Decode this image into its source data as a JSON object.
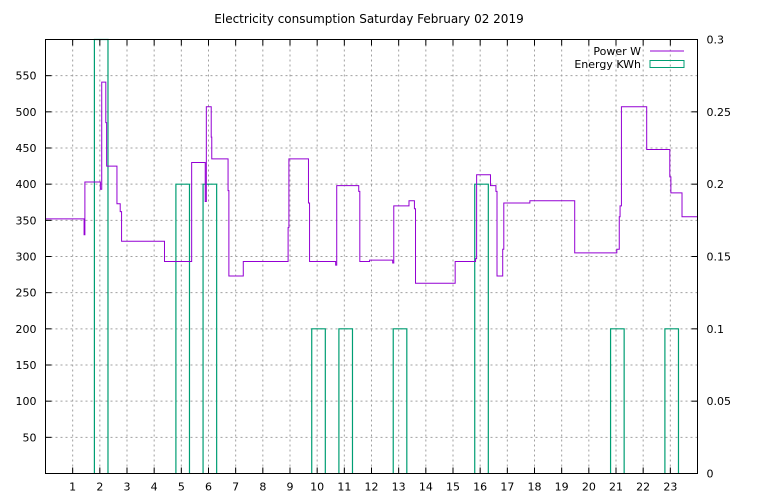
{
  "chart_data": {
    "type": "line",
    "title": "Electricity consumption Saturday February 02 2019",
    "xlabel": "",
    "ylabel": "",
    "xlim": [
      0,
      24
    ],
    "ylim": [
      0,
      600
    ],
    "y2lim": [
      0,
      0.3
    ],
    "x_ticks": [
      "1",
      "2",
      "3",
      "4",
      "5",
      "6",
      "7",
      "8",
      "9",
      "10",
      "11",
      "12",
      "13",
      "14",
      "15",
      "16",
      "17",
      "18",
      "19",
      "20",
      "21",
      "22",
      "23"
    ],
    "y_ticks": [
      "50",
      "100",
      "150",
      "200",
      "250",
      "300",
      "350",
      "400",
      "450",
      "500",
      "550"
    ],
    "y2_ticks": [
      "0",
      "0.05",
      "0.1",
      "0.15",
      "0.2",
      "0.25",
      "0.3"
    ],
    "grid": true,
    "legend_position": "top-right",
    "colors": {
      "power": "#9400d3",
      "energy": "#009e73"
    },
    "series": [
      {
        "name": "Power W",
        "axis": "left",
        "style": "steps",
        "points": [
          [
            0,
            352
          ],
          [
            1.4,
            352
          ],
          [
            1.42,
            330
          ],
          [
            1.45,
            403
          ],
          [
            2.0,
            403
          ],
          [
            2.02,
            393
          ],
          [
            2.07,
            541
          ],
          [
            2.2,
            541
          ],
          [
            2.22,
            485
          ],
          [
            2.25,
            425
          ],
          [
            2.6,
            425
          ],
          [
            2.63,
            373
          ],
          [
            2.75,
            362
          ],
          [
            2.8,
            321
          ],
          [
            4.35,
            321
          ],
          [
            4.38,
            293
          ],
          [
            5.35,
            293
          ],
          [
            5.38,
            430
          ],
          [
            5.85,
            430
          ],
          [
            5.88,
            376
          ],
          [
            5.92,
            507
          ],
          [
            6.08,
            507
          ],
          [
            6.1,
            465
          ],
          [
            6.12,
            435
          ],
          [
            6.7,
            435
          ],
          [
            6.72,
            391
          ],
          [
            6.75,
            273
          ],
          [
            7.25,
            273
          ],
          [
            7.28,
            293
          ],
          [
            8.9,
            293
          ],
          [
            8.93,
            340
          ],
          [
            8.96,
            435
          ],
          [
            9.65,
            435
          ],
          [
            9.68,
            374
          ],
          [
            9.72,
            293
          ],
          [
            10.65,
            293
          ],
          [
            10.68,
            288
          ],
          [
            10.72,
            398
          ],
          [
            11.5,
            398
          ],
          [
            11.53,
            390
          ],
          [
            11.57,
            293
          ],
          [
            11.9,
            293
          ],
          [
            11.93,
            295
          ],
          [
            12.75,
            295
          ],
          [
            12.78,
            291
          ],
          [
            12.82,
            370
          ],
          [
            13.35,
            370
          ],
          [
            13.38,
            377
          ],
          [
            13.55,
            377
          ],
          [
            13.58,
            366
          ],
          [
            13.62,
            263
          ],
          [
            15.05,
            263
          ],
          [
            15.08,
            293
          ],
          [
            15.8,
            293
          ],
          [
            15.83,
            297
          ],
          [
            15.87,
            413
          ],
          [
            16.35,
            413
          ],
          [
            16.38,
            398
          ],
          [
            16.55,
            398
          ],
          [
            16.58,
            390
          ],
          [
            16.62,
            273
          ],
          [
            16.8,
            273
          ],
          [
            16.83,
            310
          ],
          [
            16.87,
            374
          ],
          [
            17.8,
            374
          ],
          [
            17.83,
            377
          ],
          [
            19.45,
            377
          ],
          [
            19.48,
            305
          ],
          [
            21.0,
            305
          ],
          [
            21.03,
            310
          ],
          [
            21.12,
            355
          ],
          [
            21.15,
            370
          ],
          [
            21.2,
            507
          ],
          [
            22.1,
            507
          ],
          [
            22.13,
            448
          ],
          [
            22.95,
            448
          ],
          [
            22.98,
            410
          ],
          [
            23.02,
            388
          ],
          [
            23.4,
            388
          ],
          [
            23.43,
            355
          ],
          [
            24.0,
            355
          ]
        ]
      },
      {
        "name": "Energy KWh",
        "axis": "right",
        "style": "bars",
        "bars": [
          {
            "x1": 1.8,
            "x2": 2.3,
            "value": 0.3
          },
          {
            "x1": 4.8,
            "x2": 5.3,
            "value": 0.2
          },
          {
            "x1": 5.8,
            "x2": 6.3,
            "value": 0.2
          },
          {
            "x1": 9.8,
            "x2": 10.3,
            "value": 0.1
          },
          {
            "x1": 10.8,
            "x2": 11.3,
            "value": 0.1
          },
          {
            "x1": 12.8,
            "x2": 13.3,
            "value": 0.1
          },
          {
            "x1": 15.8,
            "x2": 16.3,
            "value": 0.2
          },
          {
            "x1": 20.8,
            "x2": 21.3,
            "value": 0.1
          },
          {
            "x1": 22.8,
            "x2": 23.3,
            "value": 0.1
          }
        ]
      }
    ]
  }
}
